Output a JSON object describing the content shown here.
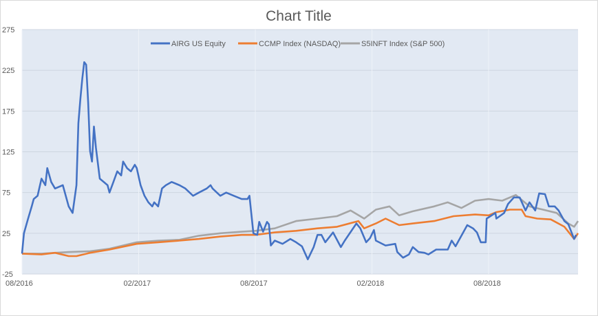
{
  "chart_data": {
    "type": "line",
    "title": "Chart Title",
    "xlabel": "",
    "ylabel": "",
    "x_unit": "months since 08/2016",
    "xlim": [
      0,
      28.6
    ],
    "ylim": [
      -25,
      275
    ],
    "yticks": [
      275,
      225,
      175,
      125,
      75,
      25,
      -25
    ],
    "ytick_labels": [
      "275",
      "225",
      "175",
      "125",
      "75",
      "25",
      "-25"
    ],
    "xticks": [
      0,
      6,
      12,
      18,
      24
    ],
    "xtick_labels": [
      "08/2016",
      "02/2017",
      "08/2017",
      "02/2018",
      "08/2018"
    ],
    "grid": true,
    "legend_position": "top",
    "series": [
      {
        "name": "AIRG US Equity",
        "color": "#4472c4",
        "points": [
          [
            0,
            0
          ],
          [
            0.1,
            25
          ],
          [
            0.3,
            42
          ],
          [
            0.5,
            58
          ],
          [
            0.6,
            67
          ],
          [
            0.8,
            71
          ],
          [
            1.0,
            92
          ],
          [
            1.2,
            84
          ],
          [
            1.3,
            105
          ],
          [
            1.5,
            88
          ],
          [
            1.7,
            80
          ],
          [
            2.1,
            84
          ],
          [
            2.4,
            58
          ],
          [
            2.6,
            50
          ],
          [
            2.8,
            84
          ],
          [
            2.9,
            160
          ],
          [
            3.0,
            190
          ],
          [
            3.1,
            215
          ],
          [
            3.2,
            235
          ],
          [
            3.3,
            232
          ],
          [
            3.4,
            186
          ],
          [
            3.5,
            126
          ],
          [
            3.6,
            113
          ],
          [
            3.7,
            156
          ],
          [
            3.8,
            130
          ],
          [
            4.0,
            92
          ],
          [
            4.2,
            88
          ],
          [
            4.4,
            84
          ],
          [
            4.5,
            75
          ],
          [
            4.7,
            88
          ],
          [
            4.9,
            101
          ],
          [
            5.1,
            96
          ],
          [
            5.2,
            113
          ],
          [
            5.4,
            105
          ],
          [
            5.6,
            101
          ],
          [
            5.8,
            109
          ],
          [
            5.9,
            105
          ],
          [
            6.1,
            84
          ],
          [
            6.3,
            71
          ],
          [
            6.5,
            63
          ],
          [
            6.7,
            58
          ],
          [
            6.8,
            63
          ],
          [
            7.0,
            58
          ],
          [
            7.2,
            80
          ],
          [
            7.4,
            84
          ],
          [
            7.7,
            88
          ],
          [
            8.1,
            84
          ],
          [
            8.4,
            80
          ],
          [
            8.8,
            71
          ],
          [
            9.1,
            75
          ],
          [
            9.5,
            80
          ],
          [
            9.7,
            84
          ],
          [
            9.8,
            80
          ],
          [
            10.2,
            71
          ],
          [
            10.5,
            75
          ],
          [
            10.9,
            71
          ],
          [
            11.3,
            67
          ],
          [
            11.6,
            67
          ],
          [
            11.7,
            71
          ],
          [
            11.9,
            25
          ],
          [
            12.1,
            23
          ],
          [
            12.2,
            39
          ],
          [
            12.4,
            27
          ],
          [
            12.6,
            39
          ],
          [
            12.7,
            36
          ],
          [
            12.8,
            10
          ],
          [
            13.0,
            16
          ],
          [
            13.4,
            12
          ],
          [
            13.8,
            18
          ],
          [
            14.1,
            14
          ],
          [
            14.4,
            9
          ],
          [
            14.7,
            -7
          ],
          [
            15.0,
            8
          ],
          [
            15.2,
            23
          ],
          [
            15.4,
            23
          ],
          [
            15.6,
            14
          ],
          [
            16.0,
            26
          ],
          [
            16.4,
            8
          ],
          [
            16.6,
            16
          ],
          [
            17.2,
            37
          ],
          [
            17.4,
            31
          ],
          [
            17.7,
            14
          ],
          [
            17.9,
            19
          ],
          [
            18.1,
            29
          ],
          [
            18.2,
            16
          ],
          [
            18.7,
            10
          ],
          [
            19.2,
            12
          ],
          [
            19.3,
            2
          ],
          [
            19.6,
            -5
          ],
          [
            19.9,
            -1
          ],
          [
            20.1,
            8
          ],
          [
            20.4,
            2
          ],
          [
            20.7,
            1
          ],
          [
            20.9,
            -1
          ],
          [
            21.3,
            5
          ],
          [
            21.6,
            5
          ],
          [
            21.9,
            5
          ],
          [
            22.1,
            16
          ],
          [
            22.3,
            9
          ],
          [
            22.9,
            35
          ],
          [
            23.2,
            31
          ],
          [
            23.4,
            26
          ],
          [
            23.6,
            14
          ],
          [
            23.85,
            14
          ],
          [
            23.9,
            43
          ],
          [
            24.35,
            50
          ],
          [
            24.4,
            43
          ],
          [
            24.8,
            50
          ],
          [
            25.0,
            61
          ],
          [
            25.3,
            69
          ],
          [
            25.6,
            69
          ],
          [
            25.9,
            53
          ],
          [
            26.1,
            63
          ],
          [
            26.4,
            53
          ],
          [
            26.6,
            74
          ],
          [
            26.9,
            73
          ],
          [
            27.1,
            58
          ],
          [
            27.4,
            58
          ],
          [
            27.6,
            53
          ],
          [
            27.9,
            40
          ],
          [
            28.1,
            36
          ],
          [
            28.4,
            18
          ],
          [
            28.5,
            23
          ]
        ]
      },
      {
        "name": "CCMP Index (NASDAQ)",
        "color": "#ed7d31",
        "points": [
          [
            0,
            0
          ],
          [
            1.0,
            -1
          ],
          [
            1.7,
            1
          ],
          [
            2.4,
            -3
          ],
          [
            2.8,
            -3
          ],
          [
            3.5,
            1
          ],
          [
            4.5,
            5
          ],
          [
            5.9,
            12
          ],
          [
            7.0,
            14
          ],
          [
            8.1,
            16
          ],
          [
            9.1,
            18
          ],
          [
            10.2,
            21
          ],
          [
            11.3,
            23
          ],
          [
            12.0,
            23
          ],
          [
            13.0,
            26
          ],
          [
            14.1,
            28
          ],
          [
            15.2,
            31
          ],
          [
            16.2,
            33
          ],
          [
            17.3,
            40
          ],
          [
            17.6,
            31
          ],
          [
            18.2,
            37
          ],
          [
            18.7,
            43
          ],
          [
            19.4,
            35
          ],
          [
            20.1,
            37
          ],
          [
            21.2,
            40
          ],
          [
            22.2,
            46
          ],
          [
            23.3,
            48
          ],
          [
            24.0,
            47
          ],
          [
            24.4,
            51
          ],
          [
            25.1,
            54
          ],
          [
            25.7,
            54
          ],
          [
            25.9,
            46
          ],
          [
            26.5,
            43
          ],
          [
            27.2,
            42
          ],
          [
            27.9,
            33
          ],
          [
            28.4,
            18
          ],
          [
            28.6,
            25
          ]
        ]
      },
      {
        "name": "S5INFT Index (S&P 500)",
        "color": "#a5a5a5",
        "points": [
          [
            0,
            0
          ],
          [
            1.0,
            0
          ],
          [
            2.4,
            2
          ],
          [
            3.5,
            3
          ],
          [
            4.5,
            6
          ],
          [
            5.9,
            14
          ],
          [
            7.0,
            16
          ],
          [
            8.1,
            17
          ],
          [
            9.1,
            22
          ],
          [
            10.2,
            25
          ],
          [
            11.3,
            27
          ],
          [
            12.0,
            28
          ],
          [
            13.0,
            31
          ],
          [
            14.1,
            40
          ],
          [
            15.2,
            43
          ],
          [
            16.2,
            46
          ],
          [
            16.9,
            53
          ],
          [
            17.6,
            43
          ],
          [
            18.2,
            54
          ],
          [
            18.9,
            58
          ],
          [
            19.4,
            47
          ],
          [
            20.1,
            52
          ],
          [
            21.2,
            58
          ],
          [
            21.9,
            63
          ],
          [
            22.6,
            56
          ],
          [
            23.3,
            65
          ],
          [
            24.0,
            67
          ],
          [
            24.7,
            65
          ],
          [
            25.4,
            72
          ],
          [
            26.1,
            58
          ],
          [
            26.8,
            54
          ],
          [
            27.5,
            50
          ],
          [
            28.1,
            37
          ],
          [
            28.4,
            33
          ],
          [
            28.6,
            40
          ]
        ]
      }
    ]
  },
  "colors": {
    "plot_bg": "#e2e9f3",
    "grid": "#cdd5e0",
    "text": "#595959"
  }
}
